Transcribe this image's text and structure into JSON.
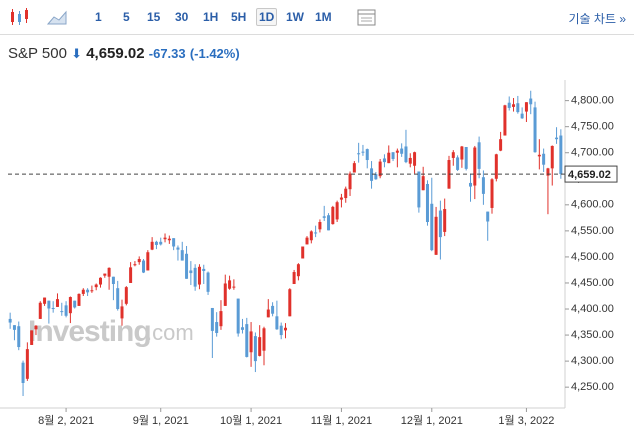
{
  "toolbar": {
    "intervals": [
      "1",
      "5",
      "15",
      "30",
      "1H",
      "5H",
      "1D",
      "1W",
      "1M"
    ],
    "active": "1D",
    "tech_chart": "기술 차트 »"
  },
  "header": {
    "symbol": "S&P 500",
    "price": "4,659.02",
    "change": "-67.33",
    "change_pct": "(-1.42%)"
  },
  "watermark": {
    "brand": "Investing",
    "suffix": ".com"
  },
  "chart_data": {
    "type": "candlestick",
    "up_color": "#e0312b",
    "down_color": "#5a9bd5",
    "open": [
      4381,
      4369,
      4367,
      4297,
      4266,
      4331,
      4361,
      4381,
      4410,
      4416,
      4402,
      4404,
      4396,
      4407,
      4392,
      4416,
      4406,
      4429,
      4437,
      4436,
      4442,
      4447,
      4464,
      4462,
      4462,
      4440,
      4382,
      4410,
      4450,
      4484,
      4490,
      4493,
      4474,
      4514,
      4529,
      4529,
      4534,
      4532,
      4536,
      4518,
      4513,
      4506,
      4474,
      4479,
      4447,
      4477,
      4470,
      4402,
      4375,
      4367,
      4406,
      4439,
      4442,
      4420,
      4365,
      4371,
      4317,
      4348,
      4310,
      4320,
      4384,
      4406,
      4386,
      4368,
      4359,
      4386,
      4448,
      4463,
      4497,
      4524,
      4532,
      4547,
      4553,
      4578,
      4580,
      4563,
      4572,
      4610,
      4613,
      4630,
      4662,
      4699,
      4702,
      4707,
      4670,
      4659,
      4655,
      4689,
      4680,
      4701,
      4700,
      4708,
      4712,
      4679,
      4675,
      4664,
      4628,
      4640,
      4602,
      4504,
      4589,
      4548,
      4631,
      4690,
      4691,
      4687,
      4711,
      4642,
      4637,
      4720,
      4653,
      4587,
      4594,
      4650,
      4704,
      4733,
      4796,
      4788,
      4795,
      4775,
      4779,
      4804,
      4787,
      4693,
      4698,
      4656,
      4670,
      4729,
      4733
    ],
    "high": [
      4393,
      4369,
      4376,
      4301,
      4336,
      4359,
      4369,
      4415,
      4422,
      4416,
      4415,
      4430,
      4412,
      4415,
      4424,
      4416,
      4430,
      4440,
      4440,
      4445,
      4449,
      4461,
      4468,
      4480,
      4462,
      4454,
      4418,
      4444,
      4490,
      4492,
      4501,
      4496,
      4513,
      4538,
      4531,
      4537,
      4545,
      4541,
      4536,
      4522,
      4529,
      4521,
      4492,
      4486,
      4486,
      4485,
      4472,
      4402,
      4394,
      4417,
      4466,
      4464,
      4457,
      4420,
      4381,
      4383,
      4375,
      4355,
      4369,
      4366,
      4419,
      4413,
      4416,
      4374,
      4373,
      4440,
      4475,
      4488,
      4520,
      4540,
      4551,
      4560,
      4572,
      4598,
      4584,
      4598,
      4608,
      4621,
      4635,
      4664,
      4684,
      4719,
      4715,
      4708,
      4684,
      4663,
      4688,
      4697,
      4714,
      4701,
      4708,
      4718,
      4744,
      4699,
      4702,
      4664,
      4673,
      4647,
      4652,
      4596,
      4608,
      4612,
      4694,
      4705,
      4695,
      4713,
      4711,
      4660,
      4713,
      4731,
      4666,
      4587,
      4651,
      4698,
      4740,
      4792,
      4808,
      4805,
      4809,
      4787,
      4797,
      4819,
      4798,
      4726,
      4708,
      4671,
      4714,
      4749,
      4745
    ],
    "low": [
      4362,
      4340,
      4321,
      4233,
      4262,
      4331,
      4350,
      4381,
      4406,
      4372,
      4393,
      4404,
      4387,
      4384,
      4373,
      4401,
      4406,
      4425,
      4425,
      4431,
      4436,
      4441,
      4460,
      4437,
      4417,
      4397,
      4368,
      4407,
      4450,
      4482,
      4485,
      4469,
      4474,
      4513,
      4515,
      4522,
      4528,
      4525,
      4513,
      4493,
      4493,
      4458,
      4446,
      4435,
      4438,
      4448,
      4427,
      4306,
      4347,
      4360,
      4406,
      4437,
      4437,
      4347,
      4353,
      4307,
      4289,
      4279,
      4309,
      4292,
      4384,
      4386,
      4360,
      4342,
      4344,
      4386,
      4448,
      4455,
      4497,
      4524,
      4526,
      4538,
      4547,
      4569,
      4551,
      4562,
      4567,
      4595,
      4604,
      4617,
      4662,
      4681,
      4694,
      4670,
      4631,
      4648,
      4651,
      4672,
      4680,
      4684,
      4672,
      4692,
      4680,
      4672,
      4660,
      4585,
      4628,
      4560,
      4511,
      4504,
      4495,
      4540,
      4631,
      4675,
      4665,
      4671,
      4666,
      4606,
      4611,
      4651,
      4600,
      4531,
      4583,
      4645,
      4703,
      4733,
      4781,
      4779,
      4775,
      4765,
      4759,
      4774,
      4700,
      4668,
      4663,
      4582,
      4637,
      4717,
      4650
    ],
    "close": [
      4374,
      4360,
      4327,
      4258,
      4323,
      4359,
      4368,
      4412,
      4422,
      4401,
      4400,
      4419,
      4395,
      4387,
      4423,
      4403,
      4429,
      4437,
      4432,
      4436,
      4447,
      4460,
      4468,
      4479,
      4448,
      4400,
      4405,
      4442,
      4480,
      4486,
      4496,
      4470,
      4509,
      4529,
      4523,
      4524,
      4537,
      4535,
      4520,
      4514,
      4493,
      4458,
      4469,
      4443,
      4481,
      4473,
      4433,
      4358,
      4354,
      4396,
      4449,
      4455,
      4443,
      4353,
      4360,
      4308,
      4357,
      4300,
      4346,
      4363,
      4399,
      4391,
      4361,
      4350,
      4364,
      4438,
      4471,
      4486,
      4520,
      4537,
      4549,
      4545,
      4567,
      4575,
      4551,
      4596,
      4605,
      4614,
      4631,
      4660,
      4680,
      4697,
      4701,
      4686,
      4646,
      4649,
      4683,
      4682,
      4700,
      4688,
      4704,
      4698,
      4682,
      4690,
      4701,
      4595,
      4655,
      4567,
      4513,
      4577,
      4538,
      4592,
      4686,
      4701,
      4667,
      4712,
      4669,
      4635,
      4710,
      4669,
      4621,
      4568,
      4649,
      4697,
      4726,
      4791,
      4786,
      4793,
      4778,
      4766,
      4797,
      4793,
      4701,
      4696,
      4677,
      4670,
      4713,
      4726,
      4659.02
    ],
    "last_price": {
      "value": 4659.02,
      "label": "4,659.02"
    },
    "ylim": [
      4210,
      4830
    ],
    "yticks": [
      {
        "value": 4250,
        "label": "4,250.00"
      },
      {
        "value": 4300,
        "label": "4,300.00"
      },
      {
        "value": 4350,
        "label": "4,350.00"
      },
      {
        "value": 4400,
        "label": "4,400.00"
      },
      {
        "value": 4450,
        "label": "4,450.00"
      },
      {
        "value": 4500,
        "label": "4,500.00"
      },
      {
        "value": 4550,
        "label": "4,550.00"
      },
      {
        "value": 4600,
        "label": "4,600.00"
      },
      {
        "value": 4650,
        "label": "4,650.00"
      },
      {
        "value": 4700,
        "label": "4,700.00"
      },
      {
        "value": 4750,
        "label": "4,750.00"
      },
      {
        "value": 4800,
        "label": "4,800.00"
      }
    ],
    "xticks": [
      {
        "value": 13,
        "label": "8월 2, 2021"
      },
      {
        "value": 35,
        "label": "9월 1, 2021"
      },
      {
        "value": 56,
        "label": "10월 1, 2021"
      },
      {
        "value": 77,
        "label": "11월 1, 2021"
      },
      {
        "value": 98,
        "label": "12월 1, 2021"
      },
      {
        "value": 120,
        "label": "1월 3, 2022"
      }
    ],
    "grid": false
  }
}
